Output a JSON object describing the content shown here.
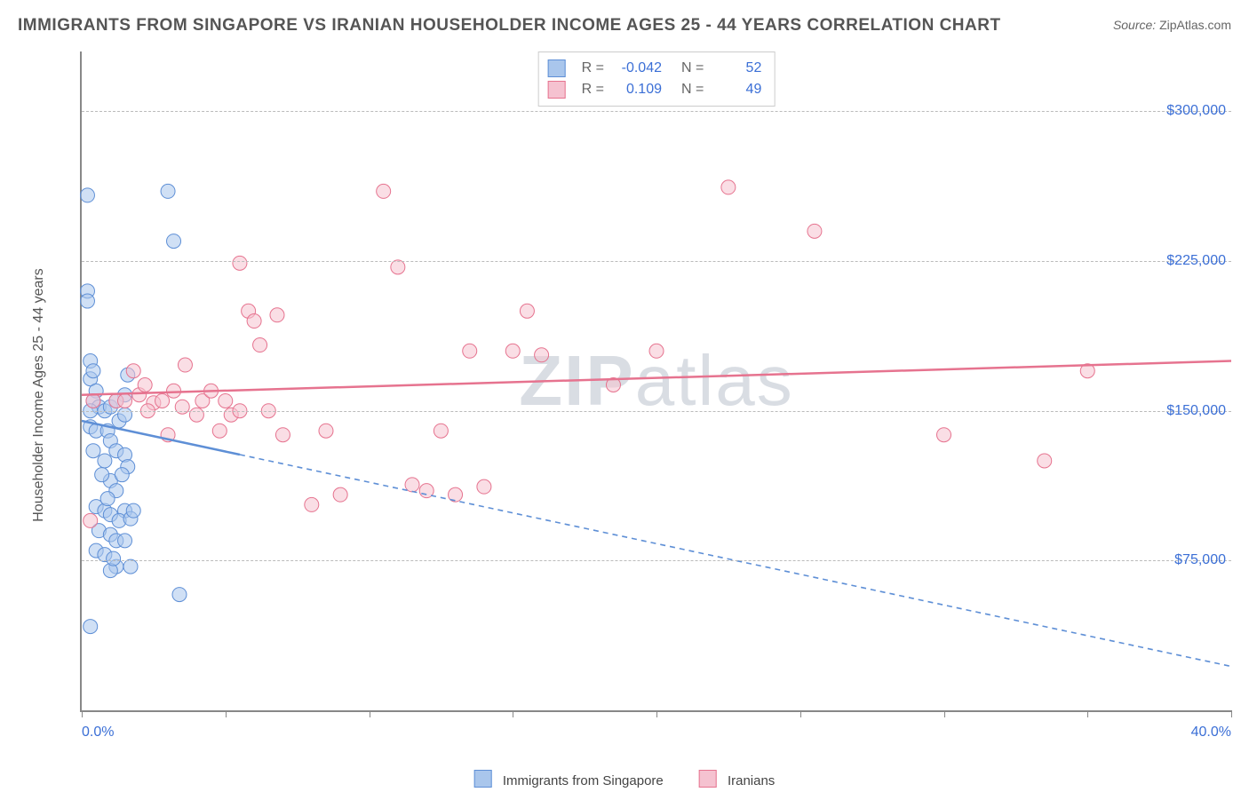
{
  "title": "IMMIGRANTS FROM SINGAPORE VS IRANIAN HOUSEHOLDER INCOME AGES 25 - 44 YEARS CORRELATION CHART",
  "source_label": "Source:",
  "source_value": "ZipAtlas.com",
  "watermark": {
    "bold": "ZIP",
    "light": "atlas"
  },
  "ylabel": "Householder Income Ages 25 - 44 years",
  "chart": {
    "type": "scatter",
    "background_color": "#ffffff",
    "grid_color": "#bbbbbb",
    "axis_color": "#888888",
    "text_color": "#555555",
    "value_color": "#3b6fd6",
    "xlim": [
      0,
      40
    ],
    "ylim": [
      0,
      330000
    ],
    "x_unit": "%",
    "y_unit": "$",
    "x_tick_positions": [
      0,
      5,
      10,
      15,
      20,
      25,
      30,
      35,
      40
    ],
    "x_tick_labels_shown": {
      "first": "0.0%",
      "last": "40.0%"
    },
    "y_gridlines": [
      75000,
      150000,
      225000,
      300000
    ],
    "y_tick_labels": [
      "$75,000",
      "$150,000",
      "$225,000",
      "$300,000"
    ],
    "marker_radius": 8,
    "marker_opacity": 0.55,
    "line_width": 2.5,
    "label_fontsize": 16,
    "title_fontsize": 19
  },
  "series": [
    {
      "name": "Immigrants from Singapore",
      "fill_color": "#a9c6ec",
      "stroke_color": "#5e8fd6",
      "R_label": "R =",
      "R": "-0.042",
      "N_label": "N =",
      "N": "52",
      "trend": {
        "x1": 0,
        "y1": 145000,
        "x2": 40,
        "y2": 22000,
        "solid_until_x": 5.5,
        "dash": "6,5"
      },
      "points": [
        [
          0.2,
          258000
        ],
        [
          0.2,
          210000
        ],
        [
          0.3,
          175000
        ],
        [
          0.3,
          166000
        ],
        [
          0.5,
          160000
        ],
        [
          0.4,
          155000
        ],
        [
          0.6,
          152000
        ],
        [
          0.3,
          150000
        ],
        [
          0.8,
          150000
        ],
        [
          0.3,
          142000
        ],
        [
          0.5,
          140000
        ],
        [
          0.9,
          140000
        ],
        [
          0.2,
          205000
        ],
        [
          1.5,
          158000
        ],
        [
          1.0,
          152000
        ],
        [
          1.2,
          155000
        ],
        [
          1.3,
          145000
        ],
        [
          1.5,
          148000
        ],
        [
          1.6,
          168000
        ],
        [
          1.0,
          135000
        ],
        [
          1.2,
          130000
        ],
        [
          0.8,
          125000
        ],
        [
          1.5,
          128000
        ],
        [
          1.6,
          122000
        ],
        [
          1.0,
          115000
        ],
        [
          1.2,
          110000
        ],
        [
          1.4,
          118000
        ],
        [
          0.5,
          102000
        ],
        [
          0.8,
          100000
        ],
        [
          1.0,
          98000
        ],
        [
          1.5,
          100000
        ],
        [
          1.3,
          95000
        ],
        [
          1.7,
          96000
        ],
        [
          1.8,
          100000
        ],
        [
          0.6,
          90000
        ],
        [
          1.0,
          88000
        ],
        [
          1.2,
          85000
        ],
        [
          1.5,
          85000
        ],
        [
          0.5,
          80000
        ],
        [
          0.8,
          78000
        ],
        [
          1.7,
          72000
        ],
        [
          1.2,
          72000
        ],
        [
          1.0,
          70000
        ],
        [
          0.3,
          42000
        ],
        [
          3.0,
          260000
        ],
        [
          3.2,
          235000
        ],
        [
          3.4,
          58000
        ],
        [
          0.4,
          130000
        ],
        [
          0.7,
          118000
        ],
        [
          0.9,
          106000
        ],
        [
          1.1,
          76000
        ],
        [
          0.4,
          170000
        ]
      ]
    },
    {
      "name": "Iranians",
      "fill_color": "#f5c2d0",
      "stroke_color": "#e6738f",
      "R_label": "R =",
      "R": "0.109",
      "N_label": "N =",
      "N": "49",
      "trend": {
        "x1": 0,
        "y1": 158000,
        "x2": 40,
        "y2": 175000,
        "solid_until_x": 40,
        "dash": null
      },
      "points": [
        [
          0.3,
          95000
        ],
        [
          0.4,
          155000
        ],
        [
          1.2,
          155000
        ],
        [
          1.5,
          155000
        ],
        [
          2.0,
          158000
        ],
        [
          2.2,
          163000
        ],
        [
          2.5,
          154000
        ],
        [
          2.8,
          155000
        ],
        [
          3.0,
          138000
        ],
        [
          3.5,
          152000
        ],
        [
          3.6,
          173000
        ],
        [
          4.0,
          148000
        ],
        [
          4.2,
          155000
        ],
        [
          4.8,
          140000
        ],
        [
          5.0,
          155000
        ],
        [
          5.2,
          148000
        ],
        [
          5.5,
          150000
        ],
        [
          5.8,
          200000
        ],
        [
          6.0,
          195000
        ],
        [
          6.2,
          183000
        ],
        [
          6.5,
          150000
        ],
        [
          7.0,
          138000
        ],
        [
          8.0,
          103000
        ],
        [
          8.5,
          140000
        ],
        [
          9.0,
          108000
        ],
        [
          10.5,
          260000
        ],
        [
          11.0,
          222000
        ],
        [
          11.5,
          113000
        ],
        [
          12.0,
          110000
        ],
        [
          12.5,
          140000
        ],
        [
          13.5,
          180000
        ],
        [
          14.0,
          112000
        ],
        [
          15.0,
          180000
        ],
        [
          15.5,
          200000
        ],
        [
          16.0,
          178000
        ],
        [
          18.5,
          163000
        ],
        [
          20.0,
          180000
        ],
        [
          22.5,
          262000
        ],
        [
          25.5,
          240000
        ],
        [
          30.0,
          138000
        ],
        [
          33.5,
          125000
        ],
        [
          35.0,
          170000
        ],
        [
          5.5,
          224000
        ],
        [
          6.8,
          198000
        ],
        [
          3.2,
          160000
        ],
        [
          4.5,
          160000
        ],
        [
          1.8,
          170000
        ],
        [
          2.3,
          150000
        ],
        [
          13.0,
          108000
        ]
      ]
    }
  ],
  "legend_bottom": [
    {
      "label": "Immigrants from Singapore",
      "fill": "#a9c6ec",
      "stroke": "#5e8fd6"
    },
    {
      "label": "Iranians",
      "fill": "#f5c2d0",
      "stroke": "#e6738f"
    }
  ]
}
